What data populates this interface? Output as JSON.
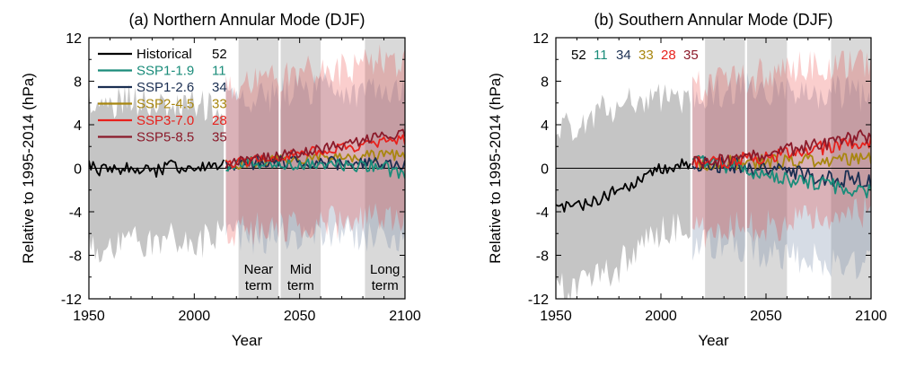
{
  "chart_data": [
    {
      "type": "line",
      "title": "(a) Northern Annular Mode (DJF)",
      "xlabel": "Year",
      "ylabel": "Relative to 1995-2014 (hPa)",
      "xlim": [
        1950,
        2100
      ],
      "ylim": [
        -12,
        12
      ],
      "xticks": [
        1950,
        2000,
        2050,
        2100
      ],
      "yticks": [
        -12,
        -8,
        -4,
        0,
        4,
        8,
        12
      ],
      "period_bands": [
        {
          "label_lines": [
            "Near",
            "term"
          ],
          "start": 2021,
          "end": 2040
        },
        {
          "label_lines": [
            "Mid",
            "term"
          ],
          "start": 2041,
          "end": 2060
        },
        {
          "label_lines": [
            "Long",
            "term"
          ],
          "start": 2081,
          "end": 2100
        }
      ],
      "legend_position": "top-left",
      "series": [
        {
          "name": "Historical",
          "count": "52",
          "color": "#000000",
          "x": [
            1950,
            1960,
            1970,
            1980,
            1990,
            2000,
            2014
          ],
          "y": [
            0.2,
            -0.4,
            0.1,
            -0.3,
            0.2,
            -0.1,
            0.3
          ],
          "range_low": [
            -7,
            -7.5,
            -6.5,
            -7,
            -6.5,
            -7,
            -6
          ],
          "range_high": [
            6,
            5.5,
            6.5,
            5.5,
            5.5,
            6,
            5
          ]
        },
        {
          "name": "SSP1-1.9",
          "count": "11",
          "color": "#1a8c7a",
          "x": [
            2015,
            2030,
            2045,
            2060,
            2075,
            2090,
            2100
          ],
          "y": [
            0.3,
            0.5,
            0.4,
            0.2,
            0.3,
            0.1,
            -0.8
          ]
        },
        {
          "name": "SSP1-2.6",
          "count": "34",
          "color": "#1b2f52",
          "x": [
            2015,
            2030,
            2045,
            2060,
            2075,
            2090,
            2100
          ],
          "y": [
            0.3,
            0.5,
            0.6,
            0.5,
            0.4,
            0.4,
            0.3
          ],
          "range_low": [
            -6,
            -6.5,
            -6,
            -6.5,
            -6,
            -6.5,
            -6.5
          ],
          "range_high": [
            7,
            6.5,
            7,
            7.5,
            7,
            7,
            7
          ]
        },
        {
          "name": "SSP2-4.5",
          "count": "33",
          "color": "#a8860f",
          "x": [
            2015,
            2030,
            2045,
            2060,
            2075,
            2090,
            2100
          ],
          "y": [
            0.3,
            0.6,
            0.8,
            1.0,
            1.1,
            1.2,
            1.3
          ]
        },
        {
          "name": "SSP3-7.0",
          "count": "28",
          "color": "#e8211c",
          "x": [
            2015,
            2030,
            2045,
            2060,
            2075,
            2090,
            2100
          ],
          "y": [
            0.4,
            0.8,
            1.2,
            1.6,
            2.0,
            2.4,
            2.6
          ],
          "range_low": [
            -6,
            -5.5,
            -5.5,
            -5,
            -5,
            -4.5,
            -4.5
          ],
          "range_high": [
            7.5,
            8,
            8.5,
            9,
            9,
            10,
            9.5
          ]
        },
        {
          "name": "SSP5-8.5",
          "count": "35",
          "color": "#8b1a2a",
          "x": [
            2015,
            2030,
            2045,
            2060,
            2075,
            2090,
            2100
          ],
          "y": [
            0.4,
            0.8,
            1.3,
            1.8,
            2.3,
            2.9,
            3.2
          ]
        }
      ]
    },
    {
      "type": "line",
      "title": "(b) Southern Annular Mode (DJF)",
      "xlabel": "Year",
      "ylabel": "Relative to 1995-2014 (hPa)",
      "xlim": [
        1950,
        2100
      ],
      "ylim": [
        -12,
        12
      ],
      "xticks": [
        1950,
        2000,
        2050,
        2100
      ],
      "yticks": [
        -12,
        -8,
        -4,
        0,
        4,
        8,
        12
      ],
      "period_bands": [
        {
          "start": 2021,
          "end": 2040
        },
        {
          "start": 2041,
          "end": 2060
        },
        {
          "start": 2081,
          "end": 2100
        }
      ],
      "count_labels": [
        {
          "text": "52",
          "color": "#000000"
        },
        {
          "text": "11",
          "color": "#1a8c7a"
        },
        {
          "text": "34",
          "color": "#1b2f52"
        },
        {
          "text": "33",
          "color": "#a8860f"
        },
        {
          "text": "28",
          "color": "#e8211c"
        },
        {
          "text": "35",
          "color": "#8b1a2a"
        }
      ],
      "series": [
        {
          "name": "Historical",
          "color": "#000000",
          "x": [
            1950,
            1960,
            1970,
            1980,
            1990,
            2000,
            2014
          ],
          "y": [
            -3.5,
            -3.5,
            -2.8,
            -2.0,
            -1.0,
            0.0,
            0.4
          ],
          "range_low": [
            -11,
            -11,
            -10,
            -9,
            -7,
            -6,
            -5
          ],
          "range_high": [
            4,
            4,
            5,
            6,
            6,
            6.5,
            6.5
          ]
        },
        {
          "name": "SSP1-1.9",
          "color": "#1a8c7a",
          "x": [
            2015,
            2030,
            2045,
            2060,
            2075,
            2090,
            2100
          ],
          "y": [
            0.4,
            0.3,
            -0.3,
            -1.0,
            -1.5,
            -1.8,
            -2.0
          ]
        },
        {
          "name": "SSP1-2.6",
          "color": "#1b2f52",
          "x": [
            2015,
            2030,
            2045,
            2060,
            2075,
            2090,
            2100
          ],
          "y": [
            0.4,
            0.3,
            0.0,
            -0.4,
            -0.8,
            -1.0,
            -1.2
          ],
          "range_low": [
            -7,
            -7,
            -7.5,
            -8,
            -8.5,
            -8.5,
            -9
          ],
          "range_high": [
            7,
            7,
            7.5,
            7,
            7,
            7,
            6.5
          ]
        },
        {
          "name": "SSP2-4.5",
          "color": "#a8860f",
          "x": [
            2015,
            2030,
            2045,
            2060,
            2075,
            2090,
            2100
          ],
          "y": [
            0.4,
            0.5,
            0.6,
            0.6,
            0.7,
            0.8,
            0.9
          ]
        },
        {
          "name": "SSP3-7.0",
          "color": "#e8211c",
          "x": [
            2015,
            2030,
            2045,
            2060,
            2075,
            2090,
            2100
          ],
          "y": [
            0.4,
            0.6,
            1.0,
            1.4,
            1.8,
            2.2,
            2.4
          ],
          "range_low": [
            -6,
            -5.5,
            -5.5,
            -5,
            -4.5,
            -4,
            -4
          ],
          "range_high": [
            7.5,
            8,
            8.5,
            9,
            9.5,
            9.5,
            10
          ]
        },
        {
          "name": "SSP5-8.5",
          "color": "#8b1a2a",
          "x": [
            2015,
            2030,
            2045,
            2060,
            2075,
            2090,
            2100
          ],
          "y": [
            0.4,
            0.8,
            1.2,
            1.7,
            2.2,
            2.7,
            3.0
          ]
        }
      ]
    }
  ]
}
